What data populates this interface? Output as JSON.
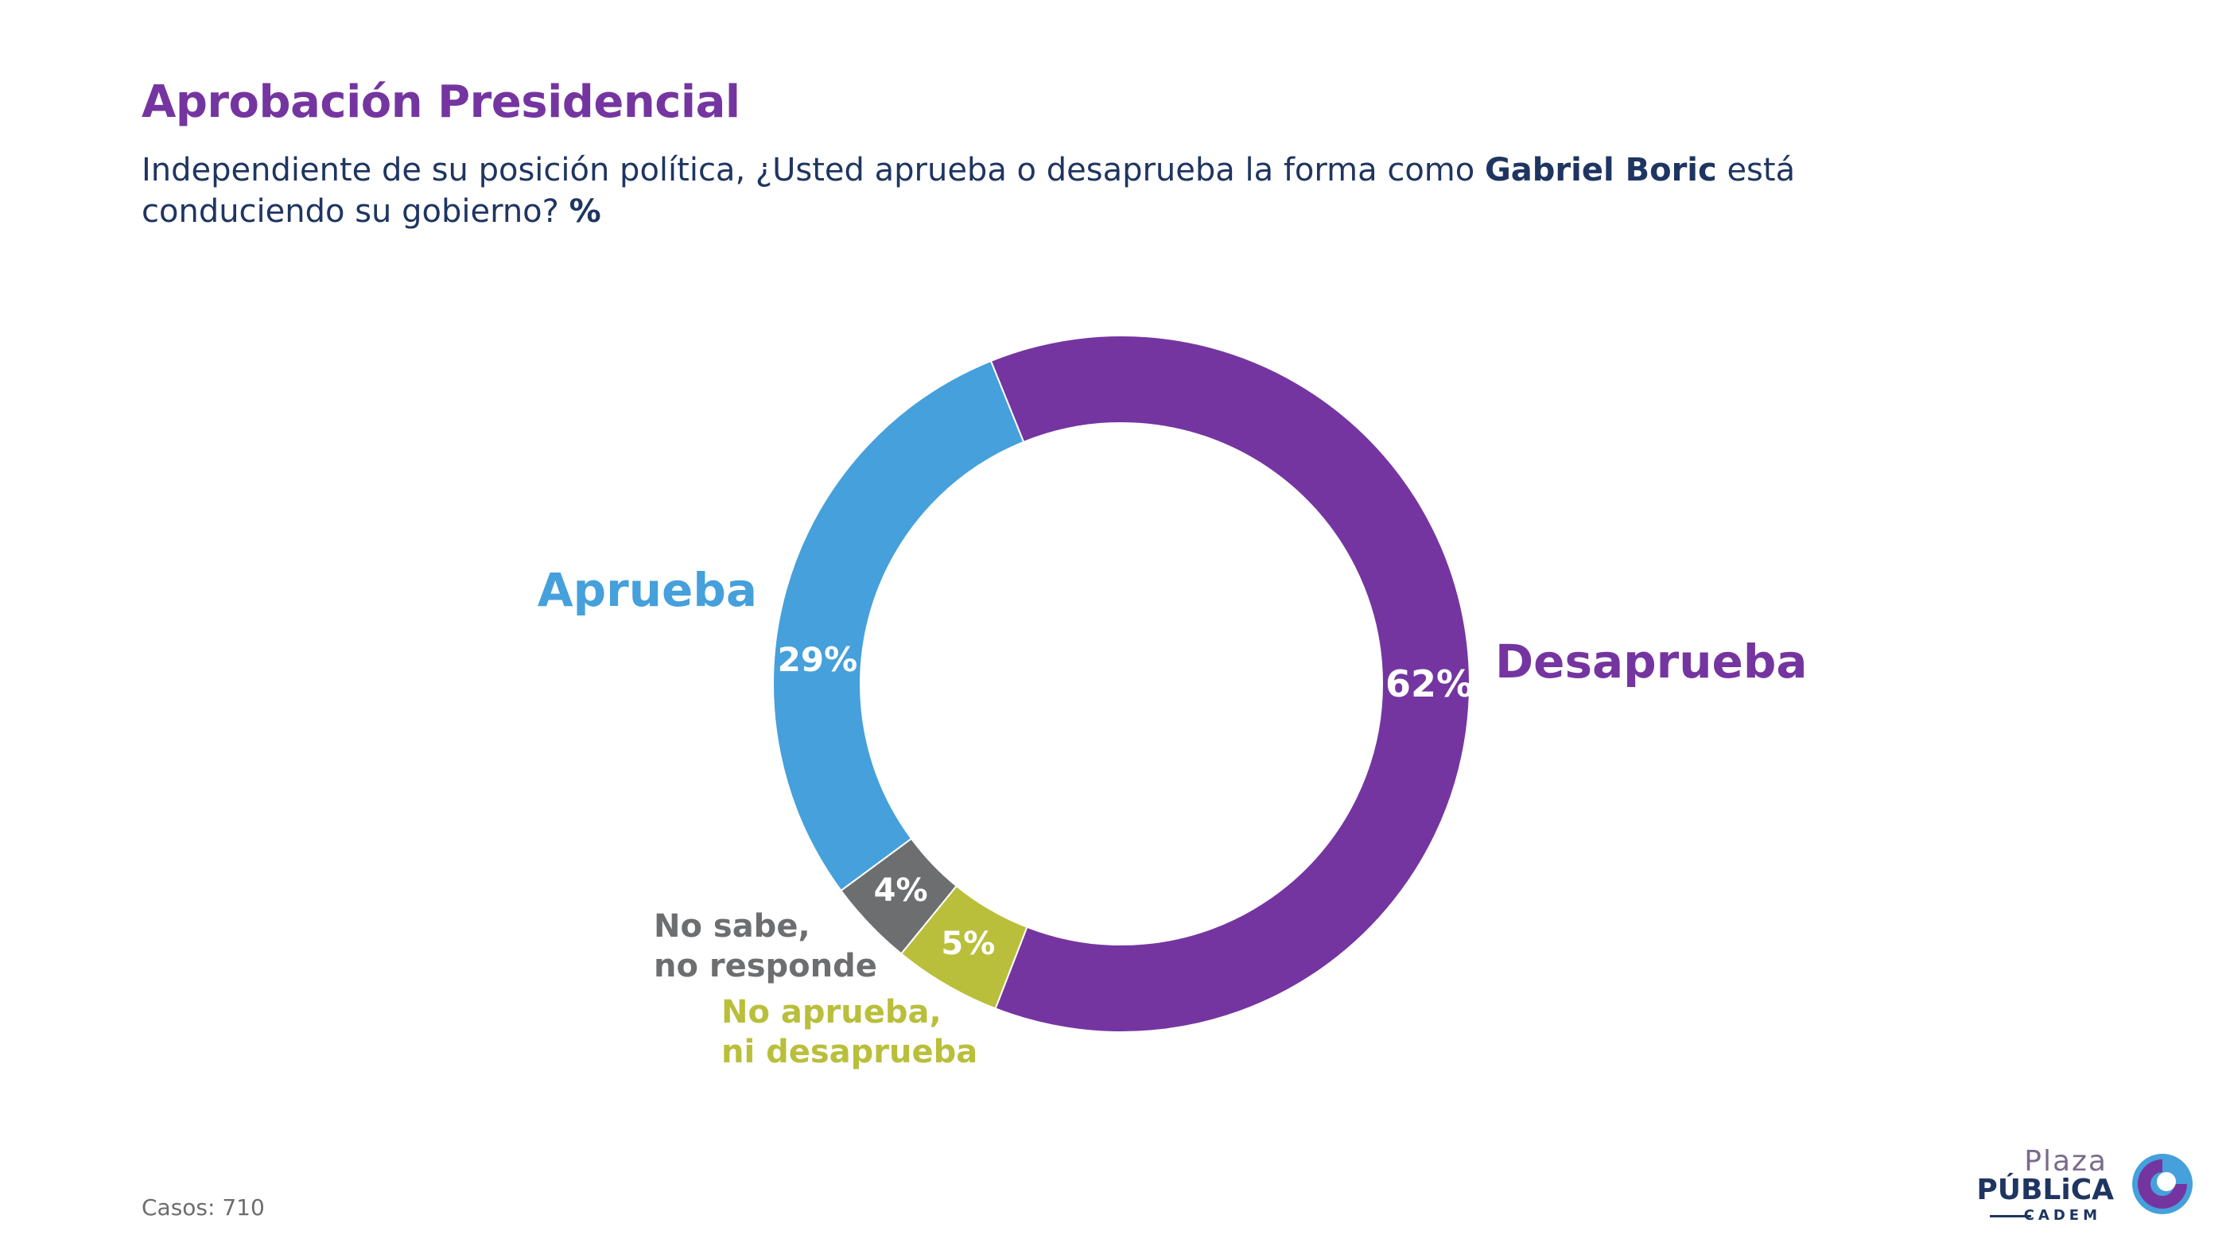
{
  "header": {
    "title": "Aprobación Presidencial",
    "subtitle_pre": "Independiente de su posición política, ¿Usted aprueba o desaprueba la forma como ",
    "subtitle_bold": "Gabriel Boric",
    "subtitle_post": " está conducie­ndo su gobierno? ",
    "subtitle_unit": "%"
  },
  "footer": {
    "cases": "Casos: 710"
  },
  "logo": {
    "line1": "Plaza",
    "line2": "PÚBLiCA",
    "line3": "CADEM"
  },
  "chart_data": {
    "type": "pie",
    "donut": true,
    "slices": [
      {
        "name": "Desaprueba",
        "value": 62,
        "label": "62%",
        "color": "#7535a0",
        "category_lines": [
          "Desaprueba"
        ]
      },
      {
        "name": "No aprueba, ni desaprueba",
        "value": 5,
        "label": "5%",
        "color": "#b9bf3a",
        "category_lines": [
          "No aprueba,",
          "ni desaprueba"
        ]
      },
      {
        "name": "No sabe, no responde",
        "value": 4,
        "label": "4%",
        "color": "#6d6e70",
        "category_lines": [
          "No sabe,",
          "no responde"
        ]
      },
      {
        "name": "Aprueba",
        "value": 29,
        "label": "29%",
        "color": "#45a0db",
        "category_lines": [
          "Aprueba"
        ]
      }
    ],
    "start_angle_deg": -22
  }
}
